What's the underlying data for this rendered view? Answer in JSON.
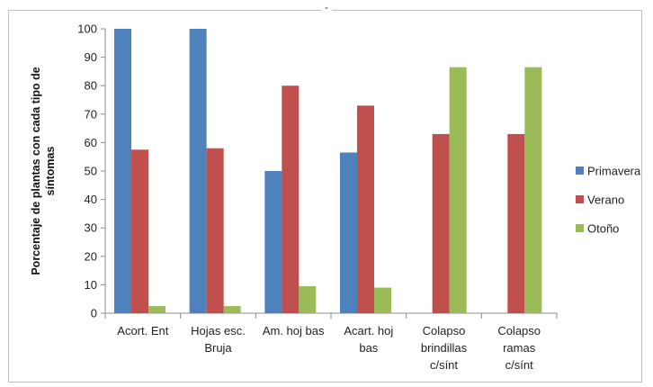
{
  "chart_data": {
    "type": "bar",
    "title_mark": "-",
    "ylabel_lines": [
      "Porcentaje de plantas con cada tipo de",
      "síntomas"
    ],
    "ylim": [
      0,
      100
    ],
    "yticks": [
      0,
      10,
      20,
      30,
      40,
      50,
      60,
      70,
      80,
      90,
      100
    ],
    "grid": false,
    "legend_position": "right",
    "categories": [
      [
        "Acort. Ent"
      ],
      [
        "Hojas esc.",
        "Bruja"
      ],
      [
        "Am. hoj bas"
      ],
      [
        "Acart. hoj",
        "bas"
      ],
      [
        "Colapso",
        "brindillas",
        "c/sínt"
      ],
      [
        "Colapso",
        "ramas",
        "c/sínt"
      ]
    ],
    "series": [
      {
        "name": "Primavera",
        "color": "#4F81BD",
        "values": [
          100,
          100,
          50,
          56.5,
          0,
          0
        ]
      },
      {
        "name": "Verano",
        "color": "#C0504D",
        "values": [
          57.5,
          58,
          80,
          73,
          63,
          63
        ]
      },
      {
        "name": "Otoño",
        "color": "#9BBB59",
        "values": [
          2.5,
          2.5,
          9.5,
          9,
          86.5,
          86.5
        ]
      }
    ]
  }
}
